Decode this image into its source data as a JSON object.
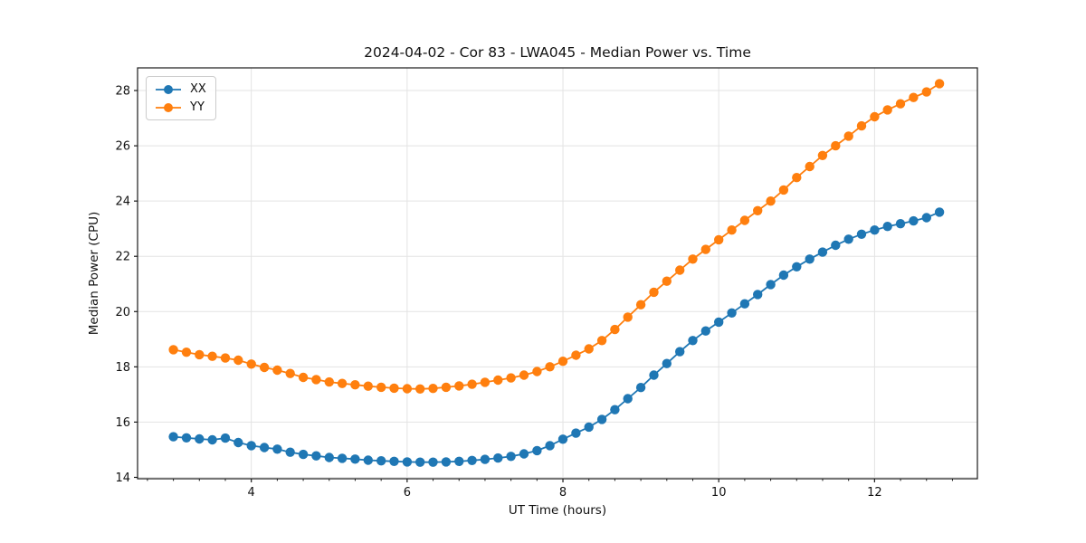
{
  "window": {
    "background": "#ffffff"
  },
  "chart_data": {
    "type": "line",
    "title": "2024-04-02 - Cor 83 - LWA045 - Median Power vs. Time",
    "xlabel": "UT Time (hours)",
    "ylabel": "Median Power (CPU)",
    "xlim": [
      2.54,
      13.32
    ],
    "ylim": [
      13.95,
      28.82
    ],
    "x_ticks": [
      4,
      6,
      8,
      10,
      12
    ],
    "x_tick_labels": [
      "4",
      "6",
      "8",
      "10",
      "12"
    ],
    "y_ticks": [
      14,
      16,
      18,
      20,
      22,
      24,
      26,
      28
    ],
    "y_tick_labels": [
      "14",
      "16",
      "18",
      "20",
      "22",
      "24",
      "26",
      "28"
    ],
    "x_minor_tick_step": 0.33333,
    "grid": true,
    "grid_color": "#e3e3e3",
    "spine_color": "#1a1a1a",
    "legend_position": "upper-left",
    "marker": "circle",
    "x": [
      3.0,
      3.167,
      3.333,
      3.5,
      3.667,
      3.833,
      4.0,
      4.167,
      4.333,
      4.5,
      4.667,
      4.833,
      5.0,
      5.167,
      5.333,
      5.5,
      5.667,
      5.833,
      6.0,
      6.167,
      6.333,
      6.5,
      6.667,
      6.833,
      7.0,
      7.167,
      7.333,
      7.5,
      7.667,
      7.833,
      8.0,
      8.167,
      8.333,
      8.5,
      8.667,
      8.833,
      9.0,
      9.167,
      9.333,
      9.5,
      9.667,
      9.833,
      10.0,
      10.167,
      10.333,
      10.5,
      10.667,
      10.833,
      11.0,
      11.167,
      11.333,
      11.5,
      11.667,
      11.833,
      12.0,
      12.167,
      12.333,
      12.5,
      12.667,
      12.833
    ],
    "series": [
      {
        "name": "XX",
        "color": "#1f77b4",
        "values": [
          15.47,
          15.43,
          15.39,
          15.36,
          15.42,
          15.26,
          15.15,
          15.08,
          15.02,
          14.91,
          14.83,
          14.78,
          14.72,
          14.69,
          14.66,
          14.62,
          14.6,
          14.58,
          14.56,
          14.55,
          14.55,
          14.56,
          14.58,
          14.61,
          14.65,
          14.7,
          14.76,
          14.85,
          14.97,
          15.15,
          15.38,
          15.6,
          15.82,
          16.1,
          16.45,
          16.85,
          17.25,
          17.7,
          18.12,
          18.55,
          18.95,
          19.3,
          19.62,
          19.95,
          20.28,
          20.62,
          20.98,
          21.32,
          21.62,
          21.9,
          22.15,
          22.4,
          22.62,
          22.8,
          22.95,
          23.08,
          23.18,
          23.28,
          23.4,
          23.6
        ]
      },
      {
        "name": "YY",
        "color": "#ff7f0e",
        "values": [
          18.62,
          18.53,
          18.44,
          18.38,
          18.32,
          18.24,
          18.1,
          17.98,
          17.88,
          17.76,
          17.62,
          17.54,
          17.45,
          17.4,
          17.35,
          17.3,
          17.26,
          17.23,
          17.21,
          17.2,
          17.22,
          17.26,
          17.31,
          17.37,
          17.44,
          17.52,
          17.6,
          17.7,
          17.83,
          18.0,
          18.2,
          18.42,
          18.65,
          18.95,
          19.35,
          19.8,
          20.25,
          20.7,
          21.1,
          21.5,
          21.9,
          22.25,
          22.6,
          22.95,
          23.3,
          23.65,
          24.0,
          24.4,
          24.85,
          25.25,
          25.65,
          26.0,
          26.35,
          26.72,
          27.05,
          27.3,
          27.52,
          27.75,
          27.95,
          28.25
        ]
      }
    ]
  }
}
